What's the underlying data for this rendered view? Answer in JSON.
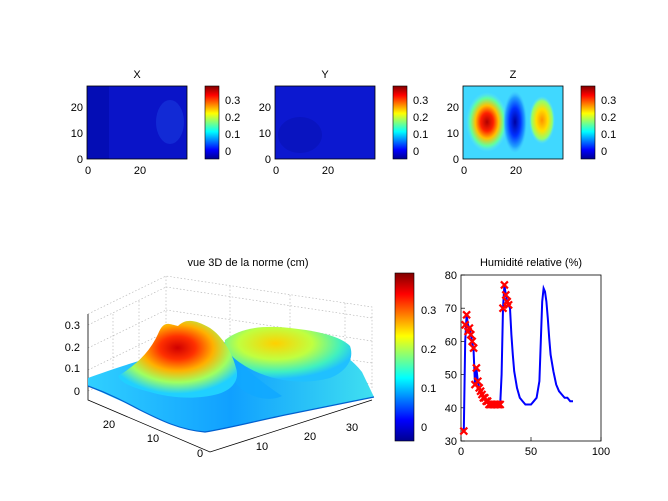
{
  "chart_data": [
    {
      "type": "heatmap",
      "title": "X",
      "xticks": [
        0,
        20
      ],
      "yticks": [
        0,
        10,
        20
      ],
      "xlim": [
        0,
        37
      ],
      "ylim": [
        0,
        28
      ],
      "colorbar": {
        "ticks": [
          "0",
          "0.1",
          "0.2",
          "0.3"
        ],
        "range": [
          -0.05,
          0.38
        ]
      },
      "description_level": "near zero everywhere"
    },
    {
      "type": "heatmap",
      "title": "Y",
      "xticks": [
        0,
        20
      ],
      "yticks": [
        0,
        10,
        20
      ],
      "xlim": [
        0,
        37
      ],
      "ylim": [
        0,
        28
      ],
      "colorbar": {
        "ticks": [
          "0",
          "0.1",
          "0.2",
          "0.3"
        ],
        "range": [
          -0.05,
          0.38
        ]
      },
      "description_level": "near zero everywhere"
    },
    {
      "type": "heatmap",
      "title": "Z",
      "xticks": [
        0,
        20
      ],
      "yticks": [
        0,
        10,
        20
      ],
      "xlim": [
        0,
        37
      ],
      "ylim": [
        0,
        28
      ],
      "colorbar": {
        "ticks": [
          "0",
          "0.1",
          "0.2",
          "0.3"
        ],
        "range": [
          -0.05,
          0.38
        ]
      },
      "peaks": [
        {
          "x": 9,
          "y": 14,
          "value": 0.36
        },
        {
          "x": 20,
          "y": 14,
          "value": -0.05
        },
        {
          "x": 32,
          "y": 16,
          "value": 0.22
        }
      ]
    },
    {
      "type": "surface",
      "title": "vue 3D de la norme    (cm)",
      "xticks": [
        "10",
        "20",
        "30"
      ],
      "yticks": [
        "0",
        "10",
        "20"
      ],
      "zticks": [
        "0",
        "0.1",
        "0.2",
        "0.3"
      ],
      "colorbar": {
        "ticks": [
          "0",
          "0.1",
          "0.2",
          "0.3"
        ],
        "range": [
          -0.05,
          0.38
        ]
      }
    },
    {
      "type": "line",
      "title": "Humidité relative (%)",
      "xlim": [
        0,
        100
      ],
      "ylim": [
        30,
        80
      ],
      "xticks": [
        "0",
        "50",
        "100"
      ],
      "yticks": [
        "30",
        "40",
        "50",
        "60",
        "70",
        "80"
      ],
      "line_color": "#0000ff",
      "marker_color": "#ff0000",
      "series_x": [
        2,
        3,
        4,
        5,
        6,
        7,
        8,
        9,
        10,
        11,
        12,
        13,
        14,
        15,
        16,
        18,
        20,
        22,
        24,
        26,
        28,
        29,
        30,
        31,
        32,
        33,
        34,
        35,
        36,
        37,
        38,
        40,
        42,
        44,
        46,
        48,
        50,
        52,
        54,
        56,
        57,
        58,
        59,
        60,
        61,
        62,
        63,
        64,
        66,
        68,
        70,
        72,
        74,
        76,
        78,
        80
      ],
      "series_y": [
        33,
        60,
        68,
        65,
        64,
        62,
        60,
        57,
        47,
        52,
        48,
        46,
        45,
        44,
        43,
        42,
        41,
        41,
        41,
        41,
        41,
        50,
        70,
        77,
        74,
        72,
        71,
        70,
        62,
        56,
        51,
        46,
        43,
        42,
        41,
        41,
        41,
        42,
        43,
        48,
        60,
        72,
        76,
        75,
        72,
        67,
        61,
        56,
        51,
        47,
        45,
        44,
        43,
        43,
        42,
        42
      ],
      "markers_x": [
        2,
        3,
        4,
        5,
        6,
        7,
        8,
        9,
        10,
        11,
        12,
        13,
        14,
        15,
        16,
        17,
        18,
        19,
        20,
        21,
        22,
        23,
        24,
        25,
        26,
        27,
        28,
        30,
        31,
        32,
        33,
        34
      ],
      "markers_y": [
        33,
        65,
        68,
        63,
        64,
        62,
        60,
        58,
        47,
        52,
        48,
        46,
        45,
        44,
        43,
        43,
        42,
        42,
        41,
        41,
        41,
        41,
        41,
        41,
        41,
        41,
        41,
        70,
        77,
        74,
        72,
        71
      ]
    }
  ]
}
